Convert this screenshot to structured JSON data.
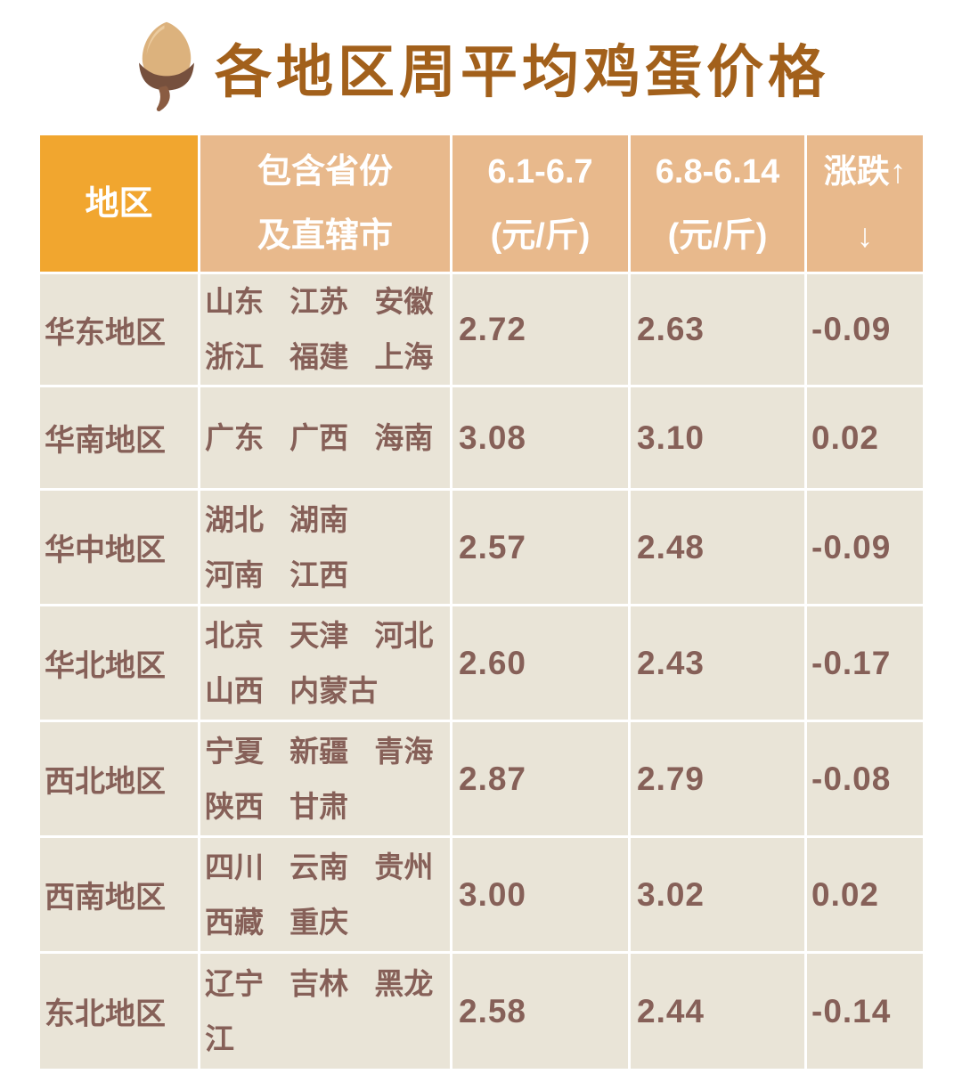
{
  "title": {
    "text": "各地区周平均鸡蛋价格",
    "icon": "acorn-icon"
  },
  "colors": {
    "title_text": "#A2601B",
    "header_region_bg": "#F1A62F",
    "header_bg": "#E8B98C",
    "header_text": "#FFFFFF",
    "cell_bg": "#E9E4D7",
    "body_text": "#866058",
    "gap": "#FFFFFF"
  },
  "table": {
    "headers": {
      "region": "地区",
      "provinces": [
        "包含省份",
        "及直辖市"
      ],
      "week1": [
        "6.1-6.7",
        "(元/斤)"
      ],
      "week2": [
        "6.8-6.14",
        "(元/斤)"
      ],
      "change": [
        "涨跌↑",
        "↓"
      ]
    },
    "rows": [
      {
        "region": "华东地区",
        "provinces_lines": [
          [
            "山东",
            "江苏",
            "安徽"
          ],
          [
            "浙江",
            "福建",
            "上海"
          ]
        ],
        "week1": "2.72",
        "week2": "2.63",
        "change": "-0.09"
      },
      {
        "region": "华南地区",
        "provinces_lines": [
          [
            "广东",
            "广西",
            "海南"
          ]
        ],
        "week1": "3.08",
        "week2": "3.10",
        "change": "0.02"
      },
      {
        "region": "华中地区",
        "provinces_lines": [
          [
            "湖北",
            "湖南"
          ],
          [
            "河南",
            "江西"
          ]
        ],
        "week1": "2.57",
        "week2": "2.48",
        "change": "-0.09"
      },
      {
        "region": "华北地区",
        "provinces_lines": [
          [
            "北京",
            "天津",
            "河北"
          ],
          [
            "山西",
            "内蒙古"
          ]
        ],
        "week1": "2.60",
        "week2": "2.43",
        "change": "-0.17"
      },
      {
        "region": "西北地区",
        "provinces_lines": [
          [
            "宁夏",
            "新疆",
            "青海"
          ],
          [
            "陕西",
            "甘肃"
          ]
        ],
        "week1": "2.87",
        "week2": "2.79",
        "change": "-0.08"
      },
      {
        "region": "西南地区",
        "provinces_lines": [
          [
            "四川",
            "云南",
            "贵州"
          ],
          [
            "西藏",
            "重庆"
          ]
        ],
        "week1": "3.00",
        "week2": "3.02",
        "change": "0.02"
      },
      {
        "region": "东北地区",
        "provinces_lines": [
          [
            "辽宁",
            "吉林",
            "黑龙江"
          ]
        ],
        "week1": "2.58",
        "week2": "2.44",
        "change": "-0.14"
      }
    ]
  },
  "chart_data": {
    "type": "table",
    "title": "各地区周平均鸡蛋价格",
    "columns": [
      "地区",
      "包含省份及直辖市",
      "6.1-6.7 (元/斤)",
      "6.8-6.14 (元/斤)",
      "涨跌↑↓"
    ],
    "categories": [
      "华东地区",
      "华南地区",
      "华中地区",
      "华北地区",
      "西北地区",
      "西南地区",
      "东北地区"
    ],
    "series": [
      {
        "name": "6.1-6.7 (元/斤)",
        "values": [
          2.72,
          3.08,
          2.57,
          2.6,
          2.87,
          3.0,
          2.58
        ]
      },
      {
        "name": "6.8-6.14 (元/斤)",
        "values": [
          2.63,
          3.1,
          2.48,
          2.43,
          2.79,
          3.02,
          2.44
        ]
      },
      {
        "name": "涨跌",
        "values": [
          -0.09,
          0.02,
          -0.09,
          -0.17,
          -0.08,
          0.02,
          -0.14
        ]
      }
    ]
  }
}
